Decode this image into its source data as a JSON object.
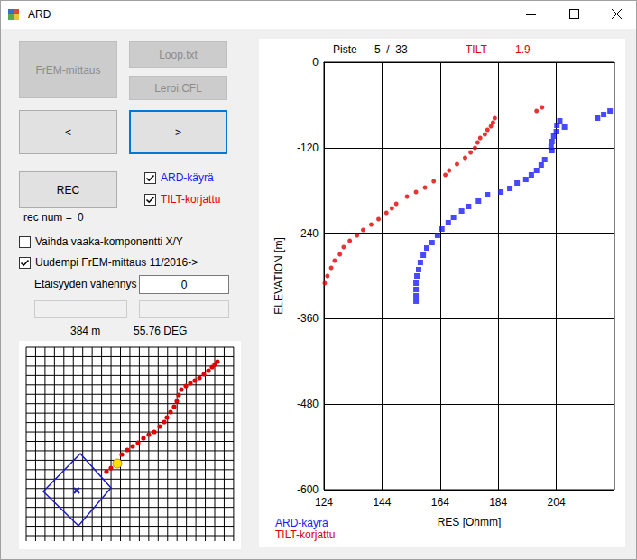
{
  "window": {
    "title": "ARD"
  },
  "buttons": [
    {
      "label": "FrEM-mittaus",
      "enabled": false
    },
    {
      "label": "Loop.txt",
      "enabled": false
    },
    {
      "label": "Leroi.CFL",
      "enabled": false
    },
    {
      "label": "<",
      "enabled": true
    },
    {
      "label": ">",
      "enabled": true,
      "focused": true
    },
    {
      "label": "REC",
      "enabled": true
    }
  ],
  "checkboxes": [
    {
      "label": "ARD-käyrä",
      "checked": true,
      "color": "#1a1aff"
    },
    {
      "label": "TILT-korjattu",
      "checked": true,
      "color": "#e00000"
    },
    {
      "label": "Vaihda vaaka-komponentti X/Y",
      "checked": false
    },
    {
      "label": "Uudempi FrEM-mittaus 11/2016->",
      "checked": true
    }
  ],
  "rec_num": {
    "label": "rec num =",
    "value": 0
  },
  "distance_reduction": {
    "label": "Etäisyyden vähennys",
    "value": 0
  },
  "status": {
    "distance": "384 m",
    "angle": "55.76 DEG"
  },
  "chart_header": {
    "point_label": "Piste",
    "point": "5  /  33",
    "tilt_label": "TILT",
    "tilt": -1.9
  },
  "chart_data": {
    "type": "scatter",
    "x_label": "RES [Ohmm]",
    "y_label": "ELEVATION [m]",
    "xlim": [
      124,
      224
    ],
    "xticks": [
      124,
      144,
      164,
      184,
      204
    ],
    "ylim": [
      -600,
      0
    ],
    "yticks": [
      0,
      -120,
      -240,
      -360,
      -480,
      -600
    ],
    "grid": true,
    "legend": "bottom left",
    "series": [
      {
        "name": "ARD-käyrä",
        "color": "#1a1aff",
        "marker": "square",
        "x": [
          222.5,
          220.3,
          218.2,
          206.8,
          205.2,
          204.2,
          204.0,
          203.1,
          202.5,
          202.2,
          202.5,
          200.0,
          198.8,
          197.2,
          195.4,
          193.5,
          190.5,
          188.0,
          184.9,
          180.3,
          177.2,
          173.8,
          171.4,
          168.6,
          166.8,
          164.6,
          163.1,
          161.2,
          159.4,
          158.2,
          157.2,
          156.6,
          156.0,
          155.7,
          155.7,
          155.7,
          155.7
        ],
        "values": [
          -68.4,
          -73.4,
          -78.5,
          -91.1,
          -82.3,
          -88.6,
          -97.5,
          -103.8,
          -111.4,
          -119.0,
          -124.1,
          -136.7,
          -144.3,
          -151.9,
          -158.2,
          -164.6,
          -169.6,
          -177.2,
          -182.3,
          -186.1,
          -194.9,
          -202.5,
          -208.9,
          -217.7,
          -225.3,
          -234.2,
          -243.0,
          -253.2,
          -260.8,
          -270.9,
          -281.0,
          -291.1,
          -300.0,
          -310.1,
          -319.0,
          -327.8,
          -335.4
        ]
      },
      {
        "name": "TILT-korjattu",
        "color": "#e00000",
        "marker": "circle",
        "x": [
          199.1,
          197.2,
          182.8,
          182.2,
          181.5,
          180.3,
          179.4,
          177.8,
          176.9,
          176.0,
          174.5,
          172.6,
          169.8,
          167.1,
          165.8,
          161.8,
          158.8,
          155.7,
          152.6,
          148.9,
          147.4,
          145.5,
          142.8,
          140.3,
          137.5,
          135.4,
          132.9,
          130.8,
          129.5,
          127.7,
          126.5,
          125.2,
          124.3
        ],
        "values": [
          -63.3,
          -68.4,
          -78.5,
          -84.8,
          -89.9,
          -94.9,
          -101.3,
          -106.3,
          -112.7,
          -120.3,
          -126.6,
          -134.2,
          -143.0,
          -151.9,
          -158.2,
          -167.1,
          -175.9,
          -182.3,
          -188.6,
          -198.7,
          -205.1,
          -211.4,
          -220.3,
          -227.8,
          -235.4,
          -243.0,
          -250.6,
          -259.5,
          -269.6,
          -278.5,
          -288.6,
          -300.0,
          -310.1
        ]
      }
    ]
  }
}
